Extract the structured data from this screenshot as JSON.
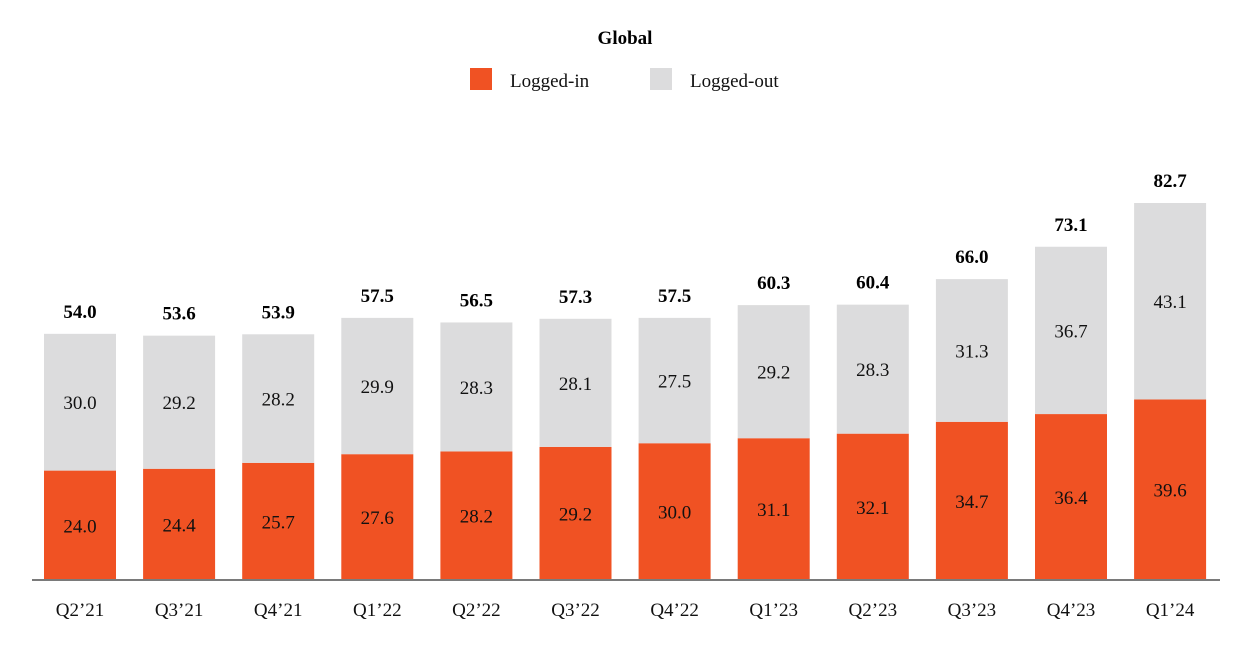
{
  "chart_data": {
    "type": "bar",
    "stacked": true,
    "title": "Global",
    "categories": [
      "Q2’21",
      "Q3’21",
      "Q4’21",
      "Q1’22",
      "Q2’22",
      "Q3’22",
      "Q4’22",
      "Q1’23",
      "Q2’23",
      "Q3’23",
      "Q4’23",
      "Q1’24"
    ],
    "series": [
      {
        "name": "Logged-in",
        "color": "#f05223",
        "values": [
          24.0,
          24.4,
          25.7,
          27.6,
          28.2,
          29.2,
          30.0,
          31.1,
          32.1,
          34.7,
          36.4,
          39.6
        ]
      },
      {
        "name": "Logged-out",
        "color": "#dcdcdd",
        "values": [
          30.0,
          29.2,
          28.2,
          29.9,
          28.3,
          28.1,
          27.5,
          29.2,
          28.3,
          31.3,
          36.7,
          43.1
        ]
      }
    ],
    "totals": [
      54.0,
      53.6,
      53.9,
      57.5,
      56.5,
      57.3,
      57.5,
      60.3,
      60.4,
      66.0,
      73.1,
      82.7
    ],
    "legend_position": "top-center",
    "xlabel": "",
    "ylabel": "",
    "ylim": [
      0,
      90
    ],
    "grid": false,
    "axis_color": "#7a7a7a"
  }
}
